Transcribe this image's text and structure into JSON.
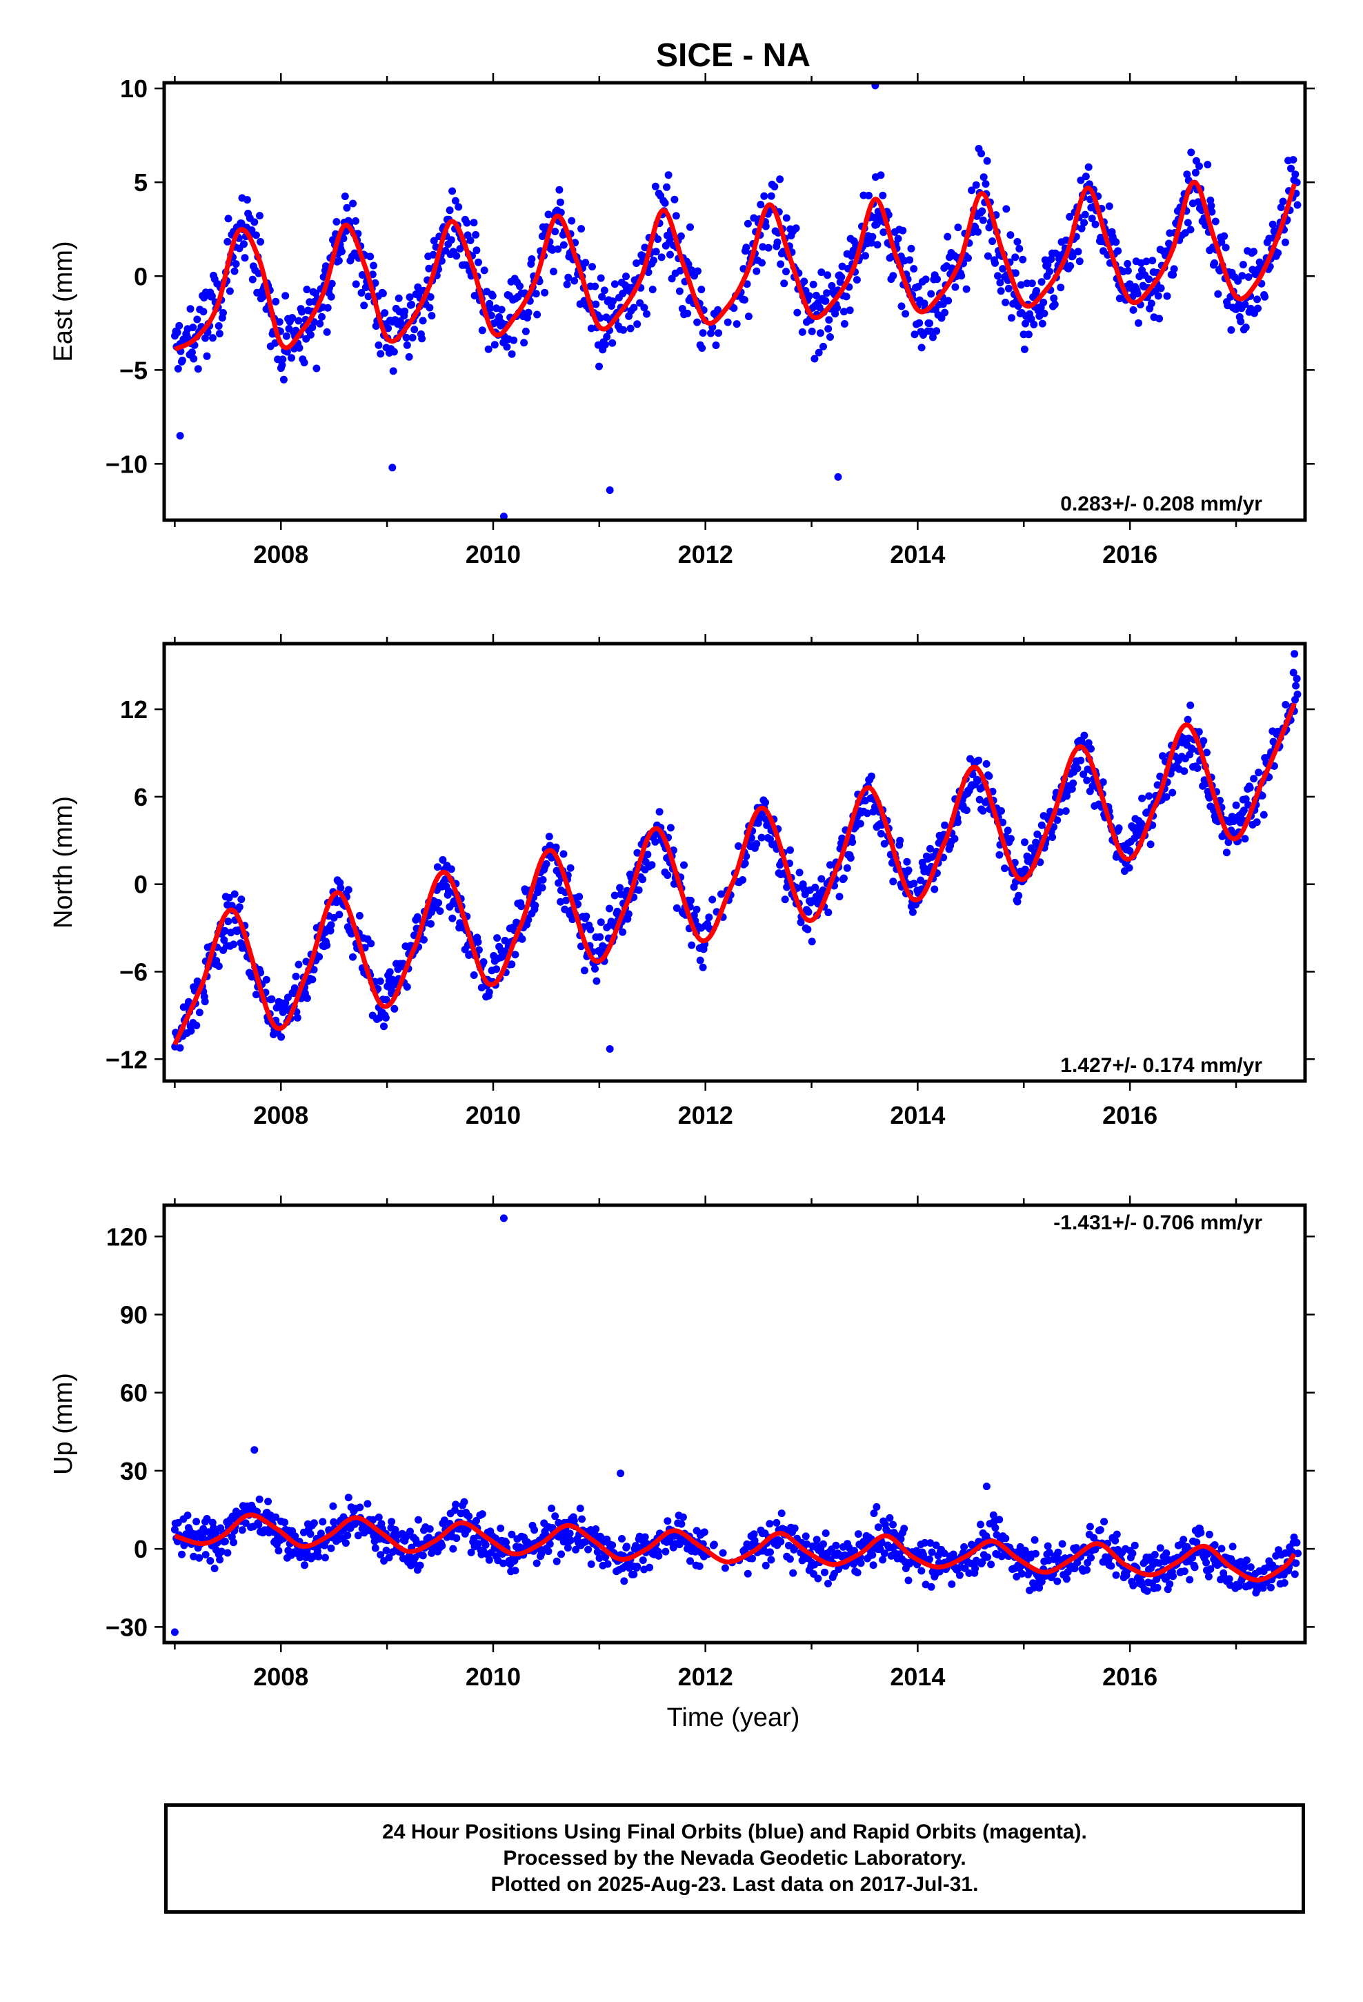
{
  "title": "SICE - NA",
  "colors": {
    "final_orbits": "#0000ff",
    "rapid_orbits": "#ff00ff",
    "model_fit": "#ff0000",
    "frame": "#000000"
  },
  "x_axis": {
    "label": "Time (year)",
    "range": [
      2006.9,
      2017.65
    ],
    "ticks": [
      "2008",
      "2010",
      "2012",
      "2014",
      "2016"
    ],
    "tick_values": [
      2008,
      2010,
      2012,
      2014,
      2016
    ]
  },
  "footer": {
    "line1": "24 Hour Positions Using Final Orbits (blue) and Rapid Orbits (magenta).",
    "line2": "Processed by the Nevada Geodetic Laboratory.",
    "line3": "Plotted on 2025-Aug-23. Last data on 2017-Jul-31."
  },
  "chart_data": [
    {
      "type": "scatter",
      "component": "east",
      "ylabel": "East (mm)",
      "ylim": [
        -13,
        10.3
      ],
      "yticks": [
        10,
        5,
        0,
        -5,
        -10
      ],
      "ytick_labels": [
        "10",
        "5",
        "0",
        "−5",
        "−10"
      ],
      "rate_label": "0.283+/- 0.208 mm/yr",
      "rate_mm_per_yr": 0.283,
      "rate_sigma": 0.208,
      "series": [
        {
          "name": "fit",
          "x": [
            2007.0,
            2007.2,
            2007.4,
            2007.6,
            2007.8,
            2008.0,
            2008.2,
            2008.4,
            2008.6,
            2008.8,
            2009.0,
            2009.2,
            2009.4,
            2009.6,
            2009.8,
            2010.0,
            2010.2,
            2010.4,
            2010.6,
            2010.8,
            2011.0,
            2011.2,
            2011.4,
            2011.6,
            2011.8,
            2012.0,
            2012.2,
            2012.4,
            2012.6,
            2012.8,
            2013.0,
            2013.2,
            2013.4,
            2013.6,
            2013.8,
            2014.0,
            2014.2,
            2014.4,
            2014.6,
            2014.8,
            2015.0,
            2015.2,
            2015.4,
            2015.6,
            2015.8,
            2016.0,
            2016.2,
            2016.4,
            2016.6,
            2016.8,
            2017.0,
            2017.2,
            2017.4,
            2017.55
          ],
          "y": [
            -3.9,
            -3.3,
            -1.6,
            2.4,
            0.8,
            -3.6,
            -2.9,
            -0.9,
            2.7,
            0.4,
            -3.3,
            -2.6,
            -0.5,
            2.9,
            0.6,
            -3.0,
            -2.2,
            -0.2,
            3.2,
            0.6,
            -2.7,
            -1.9,
            0.0,
            3.5,
            0.5,
            -2.4,
            -1.7,
            0.3,
            3.8,
            0.9,
            -2.1,
            -1.4,
            0.5,
            4.1,
            1.0,
            -1.8,
            -1.1,
            0.8,
            4.4,
            1.3,
            -1.5,
            -0.8,
            1.1,
            4.7,
            1.6,
            -1.3,
            -0.6,
            1.4,
            5.0,
            1.9,
            -1.1,
            -0.3,
            2.2,
            4.9
          ]
        }
      ],
      "outliers": [
        {
          "x": 2007.05,
          "y": -8.5
        },
        {
          "x": 2009.05,
          "y": -10.2
        },
        {
          "x": 2010.1,
          "y": -12.8
        },
        {
          "x": 2011.1,
          "y": -11.4
        },
        {
          "x": 2013.25,
          "y": -10.7
        },
        {
          "x": 2013.6,
          "y": 10.2
        }
      ]
    },
    {
      "type": "scatter",
      "component": "north",
      "ylabel": "North (mm)",
      "ylim": [
        -13.5,
        16.5
      ],
      "yticks": [
        12,
        6,
        0,
        -6,
        -12
      ],
      "ytick_labels": [
        "12",
        "6",
        "0",
        "−6",
        "−12"
      ],
      "rate_label": "1.427+/- 0.174 mm/yr",
      "rate_mm_per_yr": 1.427,
      "rate_sigma": 0.174,
      "series": [
        {
          "name": "fit",
          "x": [
            2007.0,
            2007.25,
            2007.55,
            2007.95,
            2008.25,
            2008.55,
            2008.95,
            2009.25,
            2009.55,
            2009.95,
            2010.25,
            2010.55,
            2010.95,
            2011.25,
            2011.55,
            2011.95,
            2012.25,
            2012.55,
            2012.95,
            2013.25,
            2013.55,
            2013.95,
            2014.25,
            2014.55,
            2014.95,
            2015.25,
            2015.55,
            2015.95,
            2016.25,
            2016.55,
            2016.95,
            2017.25,
            2017.55
          ],
          "y": [
            -11.0,
            -7.0,
            -1.8,
            -9.8,
            -6.0,
            -0.6,
            -8.3,
            -4.5,
            0.8,
            -6.8,
            -3.0,
            2.3,
            -5.2,
            -1.5,
            3.8,
            -3.8,
            0.0,
            5.2,
            -2.4,
            1.3,
            6.6,
            -1.0,
            2.8,
            8.0,
            0.4,
            4.2,
            9.4,
            1.8,
            5.6,
            10.9,
            3.2,
            7.1,
            12.4
          ]
        }
      ],
      "outliers": [
        {
          "x": 2011.1,
          "y": -11.3
        },
        {
          "x": 2017.55,
          "y": 15.8
        }
      ]
    },
    {
      "type": "scatter",
      "component": "up",
      "ylabel": "Up (mm)",
      "ylim": [
        -36,
        132
      ],
      "yticks": [
        120,
        90,
        60,
        30,
        0,
        -30
      ],
      "ytick_labels": [
        "120",
        "90",
        "60",
        "30",
        "0",
        "−30"
      ],
      "rate_label": "-1.431+/- 0.706 mm/yr",
      "rate_mm_per_yr": -1.431,
      "rate_sigma": 0.706,
      "series": [
        {
          "name": "fit",
          "x": [
            2007.0,
            2007.25,
            2007.45,
            2007.7,
            2007.95,
            2008.2,
            2008.45,
            2008.7,
            2008.95,
            2009.2,
            2009.45,
            2009.7,
            2009.95,
            2010.2,
            2010.45,
            2010.7,
            2010.95,
            2011.2,
            2011.45,
            2011.7,
            2011.95,
            2012.2,
            2012.45,
            2012.7,
            2012.95,
            2013.2,
            2013.45,
            2013.7,
            2013.95,
            2014.2,
            2014.45,
            2014.7,
            2014.95,
            2015.2,
            2015.45,
            2015.7,
            2015.95,
            2016.2,
            2016.45,
            2016.7,
            2016.95,
            2017.2,
            2017.45,
            2017.55
          ],
          "y": [
            5.0,
            2.0,
            5.0,
            13.0,
            8.0,
            1.0,
            5.0,
            12.0,
            6.0,
            -1.0,
            3.0,
            10.0,
            4.0,
            -2.0,
            2.0,
            9.0,
            3.0,
            -4.0,
            0.0,
            7.0,
            1.0,
            -5.0,
            -1.0,
            6.0,
            -1.0,
            -6.0,
            -2.0,
            5.0,
            -3.0,
            -7.0,
            -3.0,
            3.0,
            -4.0,
            -9.0,
            -4.0,
            2.0,
            -6.0,
            -10.0,
            -5.0,
            1.0,
            -7.0,
            -12.0,
            -7.0,
            -2.0
          ]
        }
      ],
      "outliers": [
        {
          "x": 2007.0,
          "y": -32.0
        },
        {
          "x": 2007.75,
          "y": 38.0
        },
        {
          "x": 2010.1,
          "y": 127.0
        },
        {
          "x": 2011.2,
          "y": 29.0
        },
        {
          "x": 2014.65,
          "y": 24.0
        }
      ]
    }
  ]
}
